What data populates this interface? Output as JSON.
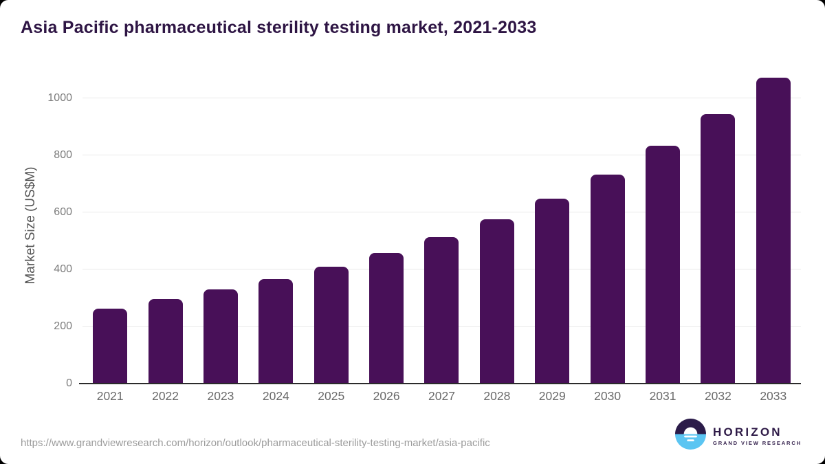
{
  "header": {
    "title": "Asia Pacific pharmaceutical sterility testing market, 2021-2033",
    "title_color": "#2e1544"
  },
  "chart_data": {
    "type": "bar",
    "title": "Asia Pacific pharmaceutical sterility testing market, 2021-2033",
    "categories": [
      "2021",
      "2022",
      "2023",
      "2024",
      "2025",
      "2026",
      "2027",
      "2028",
      "2029",
      "2030",
      "2031",
      "2032",
      "2033"
    ],
    "values": [
      264,
      297,
      331,
      366,
      410,
      459,
      514,
      577,
      648,
      734,
      833,
      945,
      1074
    ],
    "xlabel": "",
    "ylabel": "Market Size (US$M)",
    "ylim": [
      0,
      1080
    ],
    "y_ticks": [
      0,
      200,
      400,
      600,
      800,
      1000
    ],
    "grid": "horizontal-only",
    "legend": "none",
    "bar_color": "#481058",
    "gridline_color": "#e9e9e9",
    "axis_line_color": "#2b2b2b"
  },
  "footer": {
    "source_url": "https://www.grandviewresearch.com/horizon/outlook/pharmaceutical-sterility-testing-market/asia-pacific",
    "logo": {
      "brand": "HORIZON",
      "sub_brand": "GRAND VIEW RESEARCH",
      "navy": "#2b1b49",
      "blue": "#5bc5f2"
    }
  }
}
